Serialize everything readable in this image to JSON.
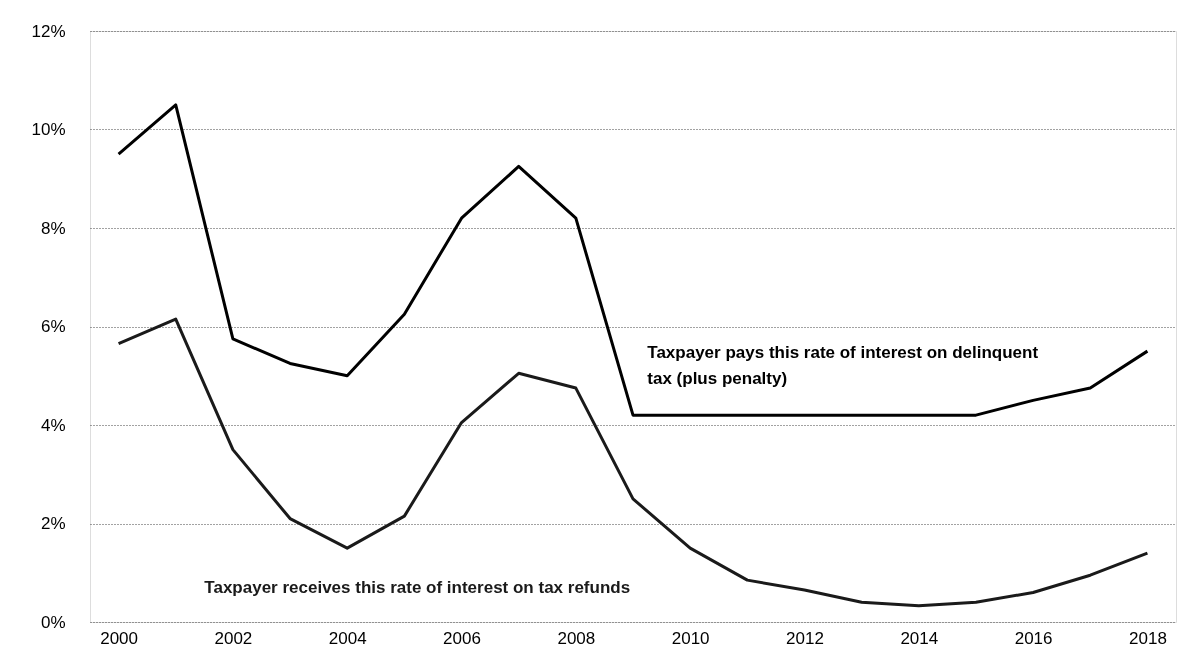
{
  "chart_data": {
    "type": "line",
    "x": [
      2000,
      2001,
      2002,
      2003,
      2004,
      2005,
      2006,
      2007,
      2008,
      2009,
      2010,
      2011,
      2012,
      2013,
      2014,
      2015,
      2016,
      2017,
      2018
    ],
    "series": [
      {
        "name": "Taxpayer pays this rate of interest on delinquent tax (plus penalty)",
        "color": "#000000",
        "values": [
          9.5,
          10.5,
          5.75,
          5.25,
          5.0,
          6.25,
          8.2,
          9.25,
          8.2,
          4.2,
          4.2,
          4.2,
          4.2,
          4.2,
          4.2,
          4.2,
          4.5,
          4.75,
          5.5
        ]
      },
      {
        "name": "Taxpayer receives this rate of interest on tax refunds",
        "color": "#1a1a1a",
        "values": [
          5.65,
          6.15,
          3.5,
          2.1,
          1.5,
          2.15,
          4.05,
          5.05,
          4.75,
          2.5,
          1.5,
          0.85,
          0.65,
          0.4,
          0.33,
          0.4,
          0.6,
          0.95,
          1.4
        ]
      }
    ],
    "xlim": [
      1999.5,
      2018.5
    ],
    "xticks": [
      2000,
      2002,
      2004,
      2006,
      2008,
      2010,
      2012,
      2014,
      2016,
      2018
    ],
    "ylim": [
      0,
      12
    ],
    "yticks": [
      {
        "value": 0,
        "label": "0%"
      },
      {
        "value": 2,
        "label": "2%"
      },
      {
        "value": 4,
        "label": "4%"
      },
      {
        "value": 6,
        "label": "6%"
      },
      {
        "value": 8,
        "label": "8%"
      },
      {
        "value": 10,
        "label": "10%"
      },
      {
        "value": 12,
        "label": "12%"
      }
    ],
    "grid": "y",
    "legend": false,
    "marker": "none",
    "line_style": "solid"
  }
}
